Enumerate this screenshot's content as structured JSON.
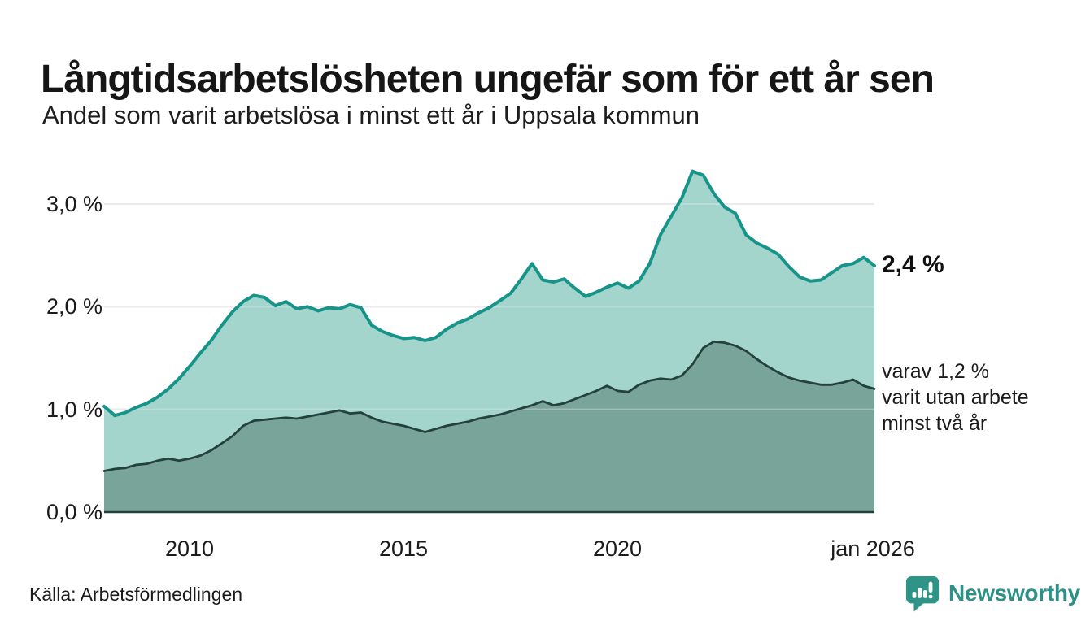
{
  "header": {
    "title": "Långtidsarbetslösheten ungefär som för ett år sen",
    "subtitle": "Andel som varit arbetslösa i minst ett år i Uppsala kommun"
  },
  "chart_data": {
    "type": "area",
    "title": "Långtidsarbetslösheten ungefär som för ett år sen",
    "subtitle": "Andel som varit arbetslösa i minst ett år i Uppsala kommun",
    "grid": true,
    "grid_color": "#e1e1e1",
    "axis_color": "#24403a",
    "legend_position": "none",
    "x_axis": {
      "range": [
        2008,
        2026.0
      ],
      "ticks": [
        {
          "label": "2010",
          "value": 2010
        },
        {
          "label": "2015",
          "value": 2015
        },
        {
          "label": "2020",
          "value": 2020
        },
        {
          "label": "jan 2026",
          "value": 2026
        }
      ]
    },
    "y_axis": {
      "unit": "%",
      "range": [
        0,
        3.45
      ],
      "ticks": [
        {
          "label": "3,0 %",
          "value": 3.0
        },
        {
          "label": "2,0 %",
          "value": 2.0
        },
        {
          "label": "1,0 %",
          "value": 1.0
        },
        {
          "label": "0,0 %",
          "value": 0.0
        }
      ]
    },
    "x": [
      2008.0,
      2008.25,
      2008.5,
      2008.75,
      2009.0,
      2009.25,
      2009.5,
      2009.75,
      2010.0,
      2010.25,
      2010.5,
      2010.75,
      2011.0,
      2011.25,
      2011.5,
      2011.75,
      2012.0,
      2012.25,
      2012.5,
      2012.75,
      2013.0,
      2013.25,
      2013.5,
      2013.75,
      2014.0,
      2014.25,
      2014.5,
      2014.75,
      2015.0,
      2015.25,
      2015.5,
      2015.75,
      2016.0,
      2016.25,
      2016.5,
      2016.75,
      2017.0,
      2017.25,
      2017.5,
      2017.75,
      2018.0,
      2018.25,
      2018.5,
      2018.75,
      2019.0,
      2019.25,
      2019.5,
      2019.75,
      2020.0,
      2020.25,
      2020.5,
      2020.75,
      2021.0,
      2021.25,
      2021.5,
      2021.75,
      2022.0,
      2022.25,
      2022.5,
      2022.75,
      2023.0,
      2023.25,
      2023.5,
      2023.75,
      2024.0,
      2024.25,
      2024.5,
      2024.75,
      2025.0,
      2025.25,
      2025.5,
      2025.75,
      2026.0
    ],
    "series": [
      {
        "name": "Andel som varit arbetslösa i minst ett år",
        "line_color": "#17948a",
        "fill_color": "rgba(140,203,192,0.80)",
        "line_width": 4,
        "last_value_label": "2,4 %",
        "values": [
          1.03,
          0.94,
          0.97,
          1.02,
          1.06,
          1.12,
          1.2,
          1.3,
          1.42,
          1.55,
          1.67,
          1.82,
          1.95,
          2.05,
          2.11,
          2.09,
          2.01,
          2.05,
          1.98,
          2.0,
          1.96,
          1.99,
          1.98,
          2.02,
          1.99,
          1.82,
          1.76,
          1.72,
          1.69,
          1.7,
          1.67,
          1.7,
          1.78,
          1.84,
          1.88,
          1.94,
          1.99,
          2.06,
          2.13,
          2.27,
          2.42,
          2.26,
          2.24,
          2.27,
          2.18,
          2.1,
          2.14,
          2.19,
          2.23,
          2.18,
          2.25,
          2.42,
          2.7,
          2.88,
          3.06,
          3.32,
          3.28,
          3.1,
          2.97,
          2.91,
          2.7,
          2.62,
          2.57,
          2.51,
          2.39,
          2.29,
          2.25,
          2.26,
          2.33,
          2.4,
          2.42,
          2.48,
          2.4
        ]
      },
      {
        "name": "varav varit utan arbete minst två år",
        "line_color": "#24423b",
        "fill_color": "rgba(116,158,149,0.90)",
        "line_width": 2.8,
        "last_value_label": "varav 1,2 %",
        "values": [
          0.4,
          0.42,
          0.43,
          0.46,
          0.47,
          0.5,
          0.52,
          0.5,
          0.52,
          0.55,
          0.6,
          0.67,
          0.74,
          0.84,
          0.89,
          0.9,
          0.91,
          0.92,
          0.91,
          0.93,
          0.95,
          0.97,
          0.99,
          0.96,
          0.97,
          0.92,
          0.88,
          0.86,
          0.84,
          0.81,
          0.78,
          0.81,
          0.84,
          0.86,
          0.88,
          0.91,
          0.93,
          0.95,
          0.98,
          1.01,
          1.04,
          1.08,
          1.04,
          1.06,
          1.1,
          1.14,
          1.18,
          1.23,
          1.18,
          1.17,
          1.24,
          1.28,
          1.3,
          1.29,
          1.33,
          1.44,
          1.6,
          1.66,
          1.65,
          1.62,
          1.57,
          1.49,
          1.42,
          1.36,
          1.31,
          1.28,
          1.26,
          1.24,
          1.24,
          1.26,
          1.29,
          1.23,
          1.2
        ]
      }
    ],
    "annotations": [
      {
        "text": "2,4 %"
      },
      {
        "lines": [
          "varav 1,2 %",
          "varit utan arbete",
          "minst två år"
        ]
      }
    ]
  },
  "footer": {
    "source": "Källa: Arbetsförmedlingen",
    "brand": "Newsworthy"
  }
}
